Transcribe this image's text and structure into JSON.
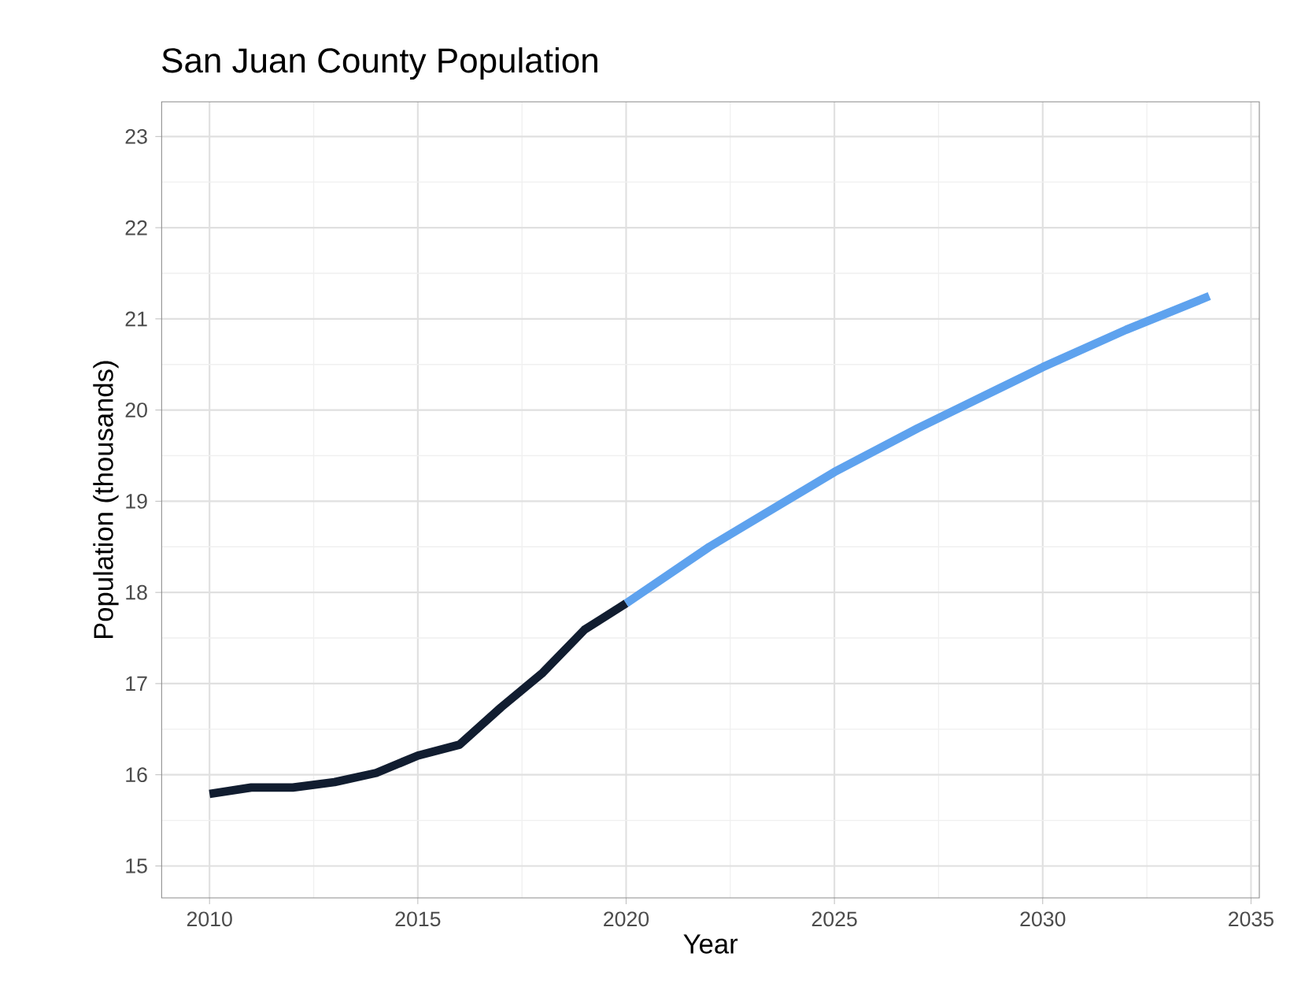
{
  "chart_data": {
    "type": "line",
    "title": "San Juan County Population",
    "xlabel": "Year",
    "ylabel": "Population (thousands)",
    "series": [
      {
        "color": "#111d30",
        "x": [
          2010,
          2011,
          2012,
          2013,
          2014,
          2015,
          2016,
          2017,
          2018,
          2019,
          2020
        ],
        "values": [
          15.79,
          15.86,
          15.86,
          15.92,
          16.02,
          16.21,
          16.33,
          16.74,
          17.12,
          17.59,
          17.88
        ]
      },
      {
        "color": "#5ea2ee",
        "x": [
          2020,
          2022,
          2025,
          2027,
          2030,
          2032,
          2034
        ],
        "values": [
          17.88,
          18.5,
          19.32,
          19.8,
          20.47,
          20.88,
          21.25
        ]
      }
    ],
    "xlim": [
      2008.85,
      2035.2
    ],
    "ylim": [
      14.65,
      23.38
    ],
    "xticks": [
      2010,
      2015,
      2020,
      2025,
      2030,
      2035
    ],
    "yticks": [
      15,
      16,
      17,
      18,
      19,
      20,
      21,
      22,
      23
    ],
    "grid": true,
    "marker": "none",
    "line_style": "solid"
  }
}
